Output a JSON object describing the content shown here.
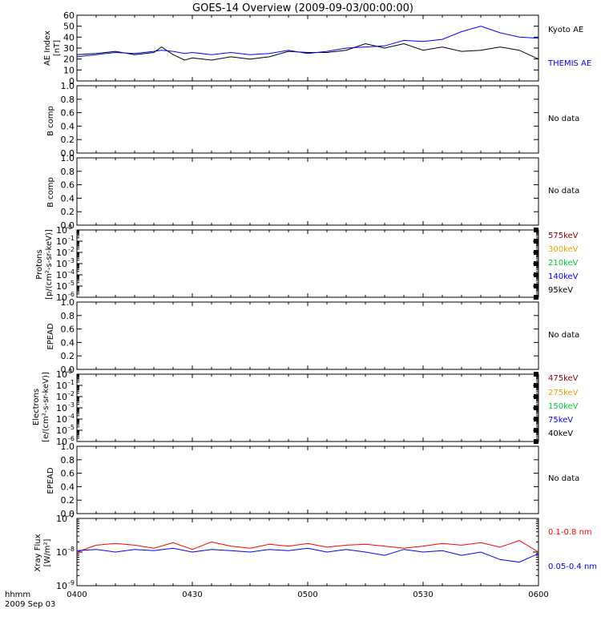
{
  "title": "GOES-14 Overview (2009-09-03/00:00:00)",
  "x_axis": {
    "caption_line1": "hhmm",
    "caption_line2": "2009 Sep 03",
    "ticks": [
      "0400",
      "0430",
      "0500",
      "0530",
      "0600"
    ]
  },
  "panels": {
    "ae": {
      "ylabel_line1": "AE Index",
      "ylabel_line2": "[nT]",
      "yticks": [
        "0",
        "10",
        "20",
        "30",
        "40",
        "50",
        "60"
      ],
      "legend": [
        {
          "label": "Kyoto AE",
          "color": "#000000"
        },
        {
          "label": "THEMIS AE",
          "color": "#0000ff"
        }
      ]
    },
    "bcomp1": {
      "ylabel": "B comp",
      "note": "No data",
      "yticks": [
        "0.0",
        "0.2",
        "0.4",
        "0.6",
        "0.8",
        "1.0"
      ]
    },
    "bcomp2": {
      "ylabel": "B comp",
      "note": "No data",
      "yticks": [
        "0.0",
        "0.2",
        "0.4",
        "0.6",
        "0.8",
        "1.0"
      ]
    },
    "protons": {
      "ylabel_line1": "Protons",
      "ylabel_line2": "[p/(cm²-s-sr-keV)]",
      "legend": [
        {
          "label": "575keV",
          "color": "#8b0000"
        },
        {
          "label": "300keV",
          "color": "#e8a000"
        },
        {
          "label": "210keV",
          "color": "#00cc33"
        },
        {
          "label": "140keV",
          "color": "#0000ff"
        },
        {
          "label": "95keV",
          "color": "#000000"
        }
      ]
    },
    "epead1": {
      "ylabel": "EPEAD",
      "note": "No data",
      "yticks": [
        "0.0",
        "0.2",
        "0.4",
        "0.6",
        "0.8",
        "1.0"
      ]
    },
    "electrons": {
      "ylabel_line1": "Electrons",
      "ylabel_line2": "[e/(cm²-s-sr-keV)]",
      "legend": [
        {
          "label": "475keV",
          "color": "#8b0000"
        },
        {
          "label": "275keV",
          "color": "#e8a000"
        },
        {
          "label": "150keV",
          "color": "#00cc33"
        },
        {
          "label": "75keV",
          "color": "#0000ff"
        },
        {
          "label": "40keV",
          "color": "#000000"
        }
      ]
    },
    "epead2": {
      "ylabel": "EPEAD",
      "note": "No data",
      "yticks": [
        "0.0",
        "0.2",
        "0.4",
        "0.6",
        "0.8",
        "1.0"
      ]
    },
    "xray": {
      "ylabel_line1": "Xray Flux",
      "ylabel_line2": "[W/m²]",
      "legend": [
        {
          "label": "0.1-0.8 nm",
          "color": "#ff0000"
        },
        {
          "label": "0.05-0.4 nm",
          "color": "#0000ff"
        }
      ]
    }
  },
  "chart_data": [
    {
      "type": "line",
      "panel": "AE Index",
      "x_unit": "hhmm (2009 Sep 03)",
      "x_range": [
        "0400",
        "0600"
      ],
      "ylim": [
        0,
        60
      ],
      "x_minutes": [
        0,
        5,
        10,
        15,
        20,
        22,
        25,
        28,
        30,
        35,
        40,
        45,
        50,
        55,
        60,
        65,
        70,
        75,
        80,
        85,
        90,
        95,
        100,
        105,
        110,
        115,
        120
      ],
      "series": [
        {
          "name": "Kyoto AE",
          "color": "#000000",
          "values": [
            24,
            25,
            27,
            24,
            26,
            31,
            24,
            19,
            21,
            19,
            22,
            20,
            22,
            27,
            26,
            26,
            28,
            34,
            30,
            34,
            28,
            31,
            27,
            28,
            31,
            28,
            20
          ]
        },
        {
          "name": "THEMIS AE",
          "color": "#0000ff",
          "values": [
            22,
            24,
            26,
            25,
            27,
            28,
            27,
            25,
            26,
            24,
            26,
            24,
            25,
            28,
            25,
            27,
            30,
            31,
            32,
            37,
            36,
            38,
            45,
            50,
            44,
            40,
            39
          ]
        }
      ]
    },
    {
      "type": "line",
      "panel": "B comp",
      "ylim": [
        0,
        1
      ]
    },
    {
      "type": "line",
      "panel": "B comp",
      "ylim": [
        0,
        1
      ]
    },
    {
      "type": "line",
      "panel": "Protons",
      "yscale": "log",
      "ylim": [
        1e-06,
        1
      ],
      "ytick_exponents": [
        0,
        -1,
        -2,
        -3,
        -4,
        -5,
        -6
      ]
    },
    {
      "type": "line",
      "panel": "EPEAD",
      "ylim": [
        0,
        1
      ]
    },
    {
      "type": "line",
      "panel": "Electrons",
      "yscale": "log",
      "ylim": [
        1e-06,
        1
      ],
      "ytick_exponents": [
        0,
        -1,
        -2,
        -3,
        -4,
        -5,
        -6
      ]
    },
    {
      "type": "line",
      "panel": "EPEAD",
      "ylim": [
        0,
        1
      ]
    },
    {
      "type": "line",
      "panel": "Xray Flux",
      "yscale": "log",
      "ylim": [
        1e-09,
        1e-07
      ],
      "ytick_exponents": [
        -7,
        -8,
        -9
      ],
      "x_minutes": [
        0,
        5,
        10,
        15,
        20,
        25,
        30,
        35,
        40,
        45,
        50,
        55,
        60,
        65,
        70,
        75,
        80,
        85,
        90,
        95,
        100,
        105,
        110,
        115,
        120
      ],
      "series": [
        {
          "name": "0.1-0.8 nm",
          "color": "#ff0000",
          "values": [
            1e-08,
            1.6e-08,
            1.8e-08,
            1.6e-08,
            1.3e-08,
            1.9e-08,
            1.2e-08,
            2e-08,
            1.5e-08,
            1.3e-08,
            1.7e-08,
            1.5e-08,
            1.8e-08,
            1.4e-08,
            1.6e-08,
            1.7e-08,
            1.5e-08,
            1.3e-08,
            1.5e-08,
            1.8e-08,
            1.6e-08,
            1.9e-08,
            1.4e-08,
            2.2e-08,
            1e-08
          ]
        },
        {
          "name": "0.05-0.4 nm",
          "color": "#0000ff",
          "values": [
            1.1e-08,
            1.2e-08,
            1e-08,
            1.2e-08,
            1.1e-08,
            1.3e-08,
            1e-08,
            1.2e-08,
            1.1e-08,
            1e-08,
            1.2e-08,
            1.1e-08,
            1.3e-08,
            1e-08,
            1.2e-08,
            1e-08,
            8e-09,
            1.2e-08,
            1e-08,
            1.1e-08,
            8e-09,
            1e-08,
            6e-09,
            5e-09,
            9e-09
          ]
        }
      ]
    }
  ]
}
